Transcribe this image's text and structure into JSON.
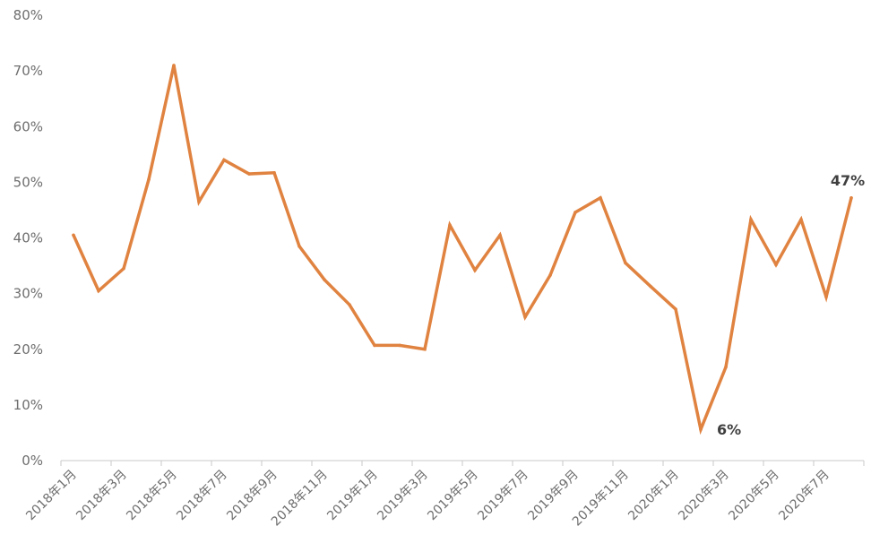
{
  "chart_data": {
    "type": "line",
    "title": "",
    "xlabel": "",
    "ylabel": "",
    "ylim": [
      0,
      80
    ],
    "y_ticks": [
      "0%",
      "10%",
      "20%",
      "30%",
      "40%",
      "50%",
      "60%",
      "70%",
      "80%"
    ],
    "x_tick_labels": [
      "2018年1月",
      "2018年3月",
      "2018年5月",
      "2018年7月",
      "2018年9月",
      "2018年11月",
      "2019年1月",
      "2019年3月",
      "2019年5月",
      "2019年7月",
      "2019年9月",
      "2019年11月",
      "2020年1月",
      "2020年3月",
      "2020年5月",
      "2020年7月"
    ],
    "grid": false,
    "line_color": "#E08341",
    "x": [
      "2018-01",
      "2018-02",
      "2018-03",
      "2018-04",
      "2018-05",
      "2018-06",
      "2018-07",
      "2018-08",
      "2018-09",
      "2018-10",
      "2018-11",
      "2018-12",
      "2019-01",
      "2019-02",
      "2019-03",
      "2019-04",
      "2019-05",
      "2019-06",
      "2019-07",
      "2019-08",
      "2019-09",
      "2019-10",
      "2019-11",
      "2019-12",
      "2020-01",
      "2020-02",
      "2020-03",
      "2020-04",
      "2020-05",
      "2020-06",
      "2020-07",
      "2020-08"
    ],
    "values": [
      40.5,
      30.5,
      34.5,
      50.5,
      71.0,
      46.5,
      54.0,
      51.5,
      51.7,
      38.5,
      32.5,
      28.0,
      20.7,
      20.7,
      20.0,
      42.3,
      34.2,
      40.5,
      25.8,
      33.3,
      44.6,
      47.2,
      35.5,
      31.3,
      27.2,
      5.6,
      16.8,
      43.3,
      35.2,
      43.3,
      29.4,
      47.2
    ],
    "annotations": [
      {
        "index": 25,
        "text": "6%"
      },
      {
        "index": 31,
        "text": "47%"
      }
    ]
  }
}
